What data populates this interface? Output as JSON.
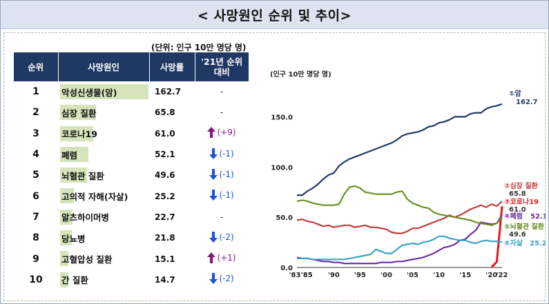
{
  "header": {
    "title": "< 사망원인 순위 및 추이>"
  },
  "table": {
    "unit": "(단위: 인구 10만 명당 명)",
    "columns": [
      "순위",
      "사망원인",
      "사망률",
      "'21년 순위\n대비"
    ],
    "rows": [
      {
        "rank": "1",
        "cause": "악성신생물(암)",
        "rate": "162.7",
        "change": "-",
        "dir": "none"
      },
      {
        "rank": "2",
        "cause": "심장 질환",
        "rate": "65.8",
        "change": "-",
        "dir": "none"
      },
      {
        "rank": "3",
        "cause": "코로나19",
        "rate": "61.0",
        "change": "(+9)",
        "dir": "up"
      },
      {
        "rank": "4",
        "cause": "폐렴",
        "rate": "52.1",
        "change": "(-1)",
        "dir": "down"
      },
      {
        "rank": "5",
        "cause": "뇌혈관 질환",
        "rate": "49.6",
        "change": "(-1)",
        "dir": "down"
      },
      {
        "rank": "6",
        "cause": "고의적 자해(자살)",
        "rate": "25.2",
        "change": "(-1)",
        "dir": "down"
      },
      {
        "rank": "7",
        "cause": "알츠하이머병",
        "rate": "22.7",
        "change": "-",
        "dir": "none"
      },
      {
        "rank": "8",
        "cause": "당뇨병",
        "rate": "21.8",
        "change": "(-2)",
        "dir": "down"
      },
      {
        "rank": "9",
        "cause": "고혈압성 질환",
        "rate": "15.1",
        "change": "(+1)",
        "dir": "up"
      },
      {
        "rank": "10",
        "cause": "간 질환",
        "rate": "14.7",
        "change": "(-2)",
        "dir": "down"
      }
    ]
  },
  "colors": {
    "header_bg": "#1f3864",
    "bar": "#d6e4bc",
    "up": "#7b1a7d",
    "down": "#1f4fd6"
  },
  "chart_data": {
    "type": "line",
    "ylabel": "(인구 10만 명당 명)",
    "ylim": [
      0,
      175
    ],
    "xlim": [
      1983,
      2022
    ],
    "yticks": [
      "0.0",
      "50.0",
      "100.0",
      "150.0"
    ],
    "xticks": [
      {
        "v": 1983,
        "t": "'83"
      },
      {
        "v": 1985,
        "t": "'85"
      },
      {
        "v": 1990,
        "t": "'90"
      },
      {
        "v": 1995,
        "t": "'95"
      },
      {
        "v": 2000,
        "t": "'00"
      },
      {
        "v": 2005,
        "t": "'05"
      },
      {
        "v": 2010,
        "t": "'10"
      },
      {
        "v": 2015,
        "t": "'15"
      },
      {
        "v": 2020,
        "t": "'20"
      },
      {
        "v": 2022,
        "t": "'22"
      }
    ],
    "x": [
      1983,
      1984,
      1985,
      1986,
      1987,
      1988,
      1989,
      1990,
      1991,
      1992,
      1993,
      1994,
      1995,
      1996,
      1997,
      1998,
      1999,
      2000,
      2001,
      2002,
      2003,
      2004,
      2005,
      2006,
      2007,
      2008,
      2009,
      2010,
      2011,
      2012,
      2013,
      2014,
      2015,
      2016,
      2017,
      2018,
      2019,
      2020,
      2021,
      2022
    ],
    "series": [
      {
        "name": "①암",
        "value": "162.7",
        "color": "#1f3864",
        "values": [
          72,
          72,
          76,
          79,
          83,
          88,
          92,
          94,
          101,
          105,
          108,
          110,
          112,
          114,
          116,
          118,
          120,
          122,
          124,
          127,
          131,
          133,
          134,
          135,
          137,
          140,
          141,
          144,
          145,
          147,
          150,
          150,
          150,
          153,
          154,
          154,
          158,
          160,
          161,
          162.7
        ]
      },
      {
        "name": "②심장 질환",
        "value": "65.8",
        "color": "#c23b3b",
        "values": [
          47,
          48,
          46,
          45,
          43,
          41,
          42,
          40,
          41,
          42,
          42,
          40,
          41,
          42,
          40,
          40,
          39,
          38,
          35,
          34,
          34,
          36,
          39,
          39,
          41,
          43,
          45,
          47,
          49,
          52,
          50,
          52,
          55,
          58,
          60,
          62,
          60,
          63,
          61,
          65.8
        ]
      },
      {
        "name": "③코로나19",
        "value": "61.0",
        "color": "#e8161c",
        "values": [
          null,
          null,
          null,
          null,
          null,
          null,
          null,
          null,
          null,
          null,
          null,
          null,
          null,
          null,
          null,
          null,
          null,
          null,
          null,
          null,
          null,
          null,
          null,
          null,
          null,
          null,
          null,
          null,
          null,
          null,
          null,
          null,
          null,
          null,
          null,
          null,
          null,
          0.2,
          5.7,
          61.0
        ]
      },
      {
        "name": "④폐렴",
        "value": "52.1",
        "color": "#6a2ca8",
        "values": [
          10,
          9,
          9,
          8,
          7,
          6,
          6,
          5,
          5,
          4,
          4,
          4,
          4,
          4,
          4,
          4,
          5,
          5,
          5,
          6,
          6,
          7,
          8,
          9,
          10,
          12,
          14,
          17,
          20,
          21,
          23,
          27,
          28,
          33,
          37,
          45,
          44,
          43,
          44,
          52.1
        ]
      },
      {
        "name": "⑤뇌혈관 질환",
        "value": "49.6",
        "color": "#6b8e23",
        "values": [
          66,
          67,
          66,
          64,
          63,
          62,
          62,
          62,
          63,
          73,
          80,
          81,
          79,
          75,
          74,
          73,
          73,
          73,
          73,
          75,
          76,
          68,
          64,
          62,
          60,
          59,
          55,
          53,
          52,
          51,
          50,
          49,
          48,
          47,
          45,
          44,
          43,
          42,
          44,
          49.6
        ]
      },
      {
        "name": "⑥자살",
        "value": "25.2",
        "color": "#3ba3c4",
        "values": [
          9,
          9,
          9,
          8,
          8,
          8,
          8,
          8,
          8,
          8,
          9,
          10,
          11,
          12,
          13,
          18,
          16,
          14,
          14,
          18,
          22,
          23,
          24,
          23,
          25,
          26,
          28,
          31,
          31,
          29,
          28,
          27,
          27,
          25,
          24,
          26,
          27,
          26,
          26,
          25.2
        ]
      }
    ]
  }
}
